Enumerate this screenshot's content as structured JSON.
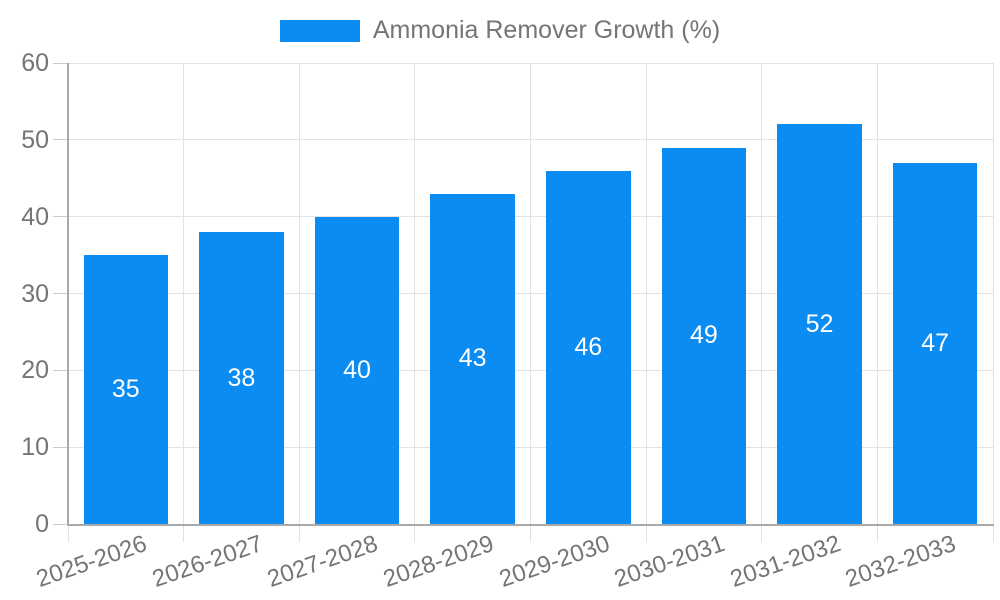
{
  "chart_data": {
    "type": "bar",
    "title": "",
    "legend": "Ammonia Remover Growth (%)",
    "legend_position": "top-center",
    "categories": [
      "2025-2026",
      "2026-2027",
      "2027-2028",
      "2028-2029",
      "2029-2030",
      "2030-2031",
      "2031-2032",
      "2032-2033"
    ],
    "values": [
      35,
      38,
      40,
      43,
      46,
      49,
      52,
      47
    ],
    "xlabel": "",
    "ylabel": "",
    "ylim": [
      0,
      60
    ],
    "ytick_step": 10,
    "yticks": [
      0,
      10,
      20,
      30,
      40,
      50,
      60
    ],
    "grid": true,
    "bar_label_position": "center",
    "colors": {
      "bar": "#0a8cf2",
      "bar_label": "#ffffff",
      "axis_text": "#757575",
      "grid_line": "#e2e2e2",
      "axis_line": "#a8a8a8",
      "tick_line": "#cccccc",
      "background": "#ffffff"
    }
  }
}
